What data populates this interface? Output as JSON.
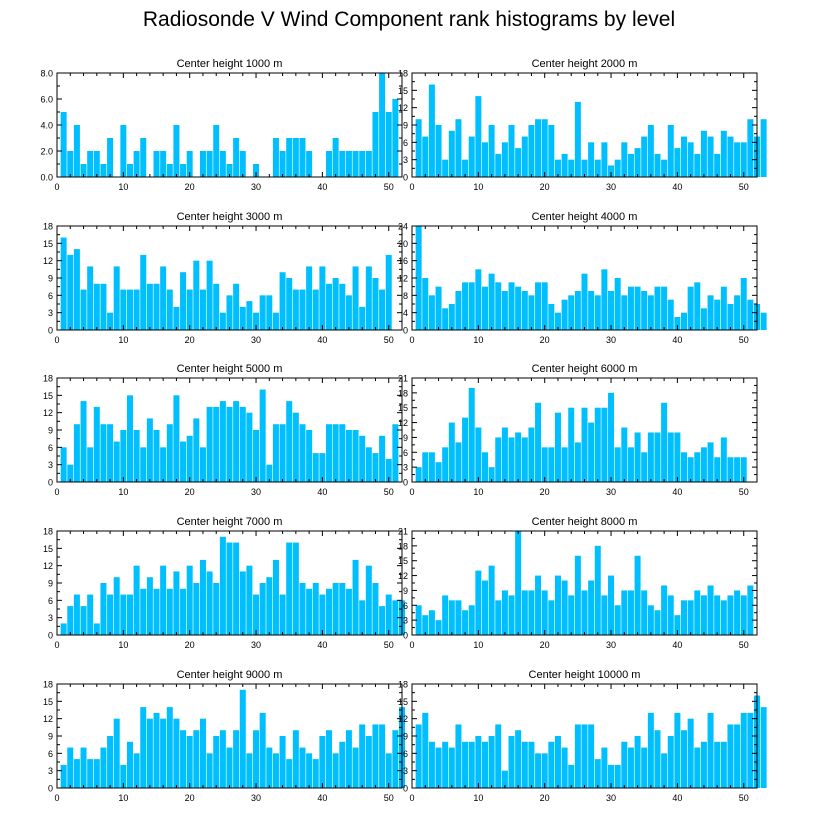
{
  "title": "Radiosonde V Wind Component rank histograms by level",
  "bar_color": "#00BFFF",
  "chart_data": [
    {
      "type": "bar",
      "title": "Center height 1000 m",
      "xlim": [
        0,
        52
      ],
      "ylim": [
        0,
        8
      ],
      "yticks": [
        0,
        2,
        4,
        6,
        8
      ],
      "ytick_labels": [
        "0.0",
        "2.0",
        "4.0",
        "6.0",
        "8.0"
      ],
      "xticks": [
        0,
        10,
        20,
        30,
        40,
        50
      ],
      "values": [
        5,
        2,
        4,
        1,
        2,
        2,
        1,
        3,
        0,
        4,
        1,
        2,
        3,
        0,
        2,
        2,
        1,
        4,
        1,
        2,
        0,
        2,
        2,
        4,
        2,
        1,
        3,
        2,
        0,
        1,
        0,
        0,
        3,
        2,
        3,
        3,
        3,
        2,
        0,
        0,
        2,
        3,
        2,
        2,
        2,
        2,
        2,
        5,
        8,
        5,
        6
      ]
    },
    {
      "type": "bar",
      "title": "Center height 2000 m",
      "xlim": [
        0,
        52
      ],
      "ylim": [
        0,
        18
      ],
      "yticks": [
        0,
        3,
        6,
        9,
        12,
        15,
        18
      ],
      "ytick_labels": [
        "0",
        "3",
        "6",
        "9",
        "12",
        "15",
        "18"
      ],
      "xticks": [
        0,
        10,
        20,
        30,
        40,
        50
      ],
      "values": [
        10,
        7,
        16,
        9,
        3,
        8,
        10,
        3,
        7,
        14,
        6,
        9,
        4,
        6,
        9,
        5,
        7,
        9,
        10,
        10,
        9,
        3,
        4,
        3,
        13,
        3,
        6,
        3,
        6,
        2,
        3,
        6,
        4,
        5,
        7,
        9,
        4,
        3,
        9,
        5,
        7,
        6,
        4,
        8,
        7,
        4,
        8,
        7,
        6,
        6,
        10,
        7,
        10
      ]
    },
    {
      "type": "bar",
      "title": "Center height 3000 m",
      "xlim": [
        0,
        52
      ],
      "ylim": [
        0,
        18
      ],
      "yticks": [
        0,
        3,
        6,
        9,
        12,
        15,
        18
      ],
      "ytick_labels": [
        "0",
        "3",
        "6",
        "9",
        "12",
        "15",
        "18"
      ],
      "xticks": [
        0,
        10,
        20,
        30,
        40,
        50
      ],
      "values": [
        16,
        13,
        14,
        7,
        11,
        8,
        8,
        3,
        11,
        7,
        7,
        7,
        13,
        8,
        8,
        11,
        7,
        4,
        10,
        7,
        12,
        7,
        12,
        8,
        3,
        6,
        8,
        4,
        5,
        3,
        6,
        6,
        3,
        10,
        9,
        7,
        7,
        11,
        7,
        11,
        8,
        9,
        8,
        6,
        11,
        4,
        11,
        9,
        7,
        13
      ]
    },
    {
      "type": "bar",
      "title": "Center height 4000 m",
      "xlim": [
        0,
        52
      ],
      "ylim": [
        0,
        24
      ],
      "yticks": [
        0,
        4,
        8,
        12,
        16,
        20,
        24
      ],
      "ytick_labels": [
        "0",
        "4",
        "8",
        "12",
        "16",
        "20",
        "24"
      ],
      "xticks": [
        0,
        10,
        20,
        30,
        40,
        50
      ],
      "values": [
        24,
        12,
        8,
        10,
        5,
        6,
        9,
        11,
        11,
        14,
        10,
        13,
        11,
        9,
        11,
        10,
        9,
        8,
        11,
        11,
        6,
        4,
        7,
        8,
        9,
        13,
        9,
        8,
        14,
        9,
        12,
        8,
        10,
        10,
        9,
        8,
        10,
        10,
        7,
        3,
        4,
        10,
        11,
        5,
        8,
        7,
        10,
        6,
        8,
        12,
        7,
        6,
        4
      ]
    },
    {
      "type": "bar",
      "title": "Center height 5000 m",
      "xlim": [
        0,
        52
      ],
      "ylim": [
        0,
        18
      ],
      "yticks": [
        0,
        3,
        6,
        9,
        12,
        15,
        18
      ],
      "ytick_labels": [
        "0",
        "3",
        "6",
        "9",
        "12",
        "15",
        "18"
      ],
      "xticks": [
        0,
        10,
        20,
        30,
        40,
        50
      ],
      "values": [
        6,
        3,
        10,
        14,
        6,
        13,
        10,
        10,
        7,
        9,
        15,
        9,
        6,
        11,
        9,
        6,
        10,
        15,
        7,
        8,
        11,
        6,
        13,
        13,
        14,
        13,
        14,
        13,
        12,
        9,
        16,
        3,
        10,
        10,
        14,
        12,
        10,
        9,
        5,
        5,
        10,
        10,
        10,
        9,
        9,
        8,
        6,
        5,
        8,
        4,
        10
      ]
    },
    {
      "type": "bar",
      "title": "Center height 6000 m",
      "xlim": [
        0,
        52
      ],
      "ylim": [
        0,
        21
      ],
      "yticks": [
        0,
        3,
        6,
        9,
        12,
        15,
        18,
        21
      ],
      "ytick_labels": [
        "0",
        "3",
        "6",
        "9",
        "12",
        "15",
        "18",
        "21"
      ],
      "xticks": [
        0,
        10,
        20,
        30,
        40,
        50
      ],
      "values": [
        3,
        6,
        6,
        4,
        7,
        12,
        8,
        13,
        19,
        11,
        6,
        3,
        9,
        11,
        9,
        10,
        9,
        11,
        16,
        7,
        7,
        14,
        7,
        15,
        8,
        15,
        12,
        15,
        15,
        18,
        7,
        11,
        7,
        10,
        6,
        10,
        10,
        16,
        10,
        10,
        6,
        5,
        6,
        7,
        8,
        5,
        9,
        5,
        5,
        5
      ]
    },
    {
      "type": "bar",
      "title": "Center height 7000 m",
      "xlim": [
        0,
        52
      ],
      "ylim": [
        0,
        18
      ],
      "yticks": [
        0,
        3,
        6,
        9,
        12,
        15,
        18
      ],
      "ytick_labels": [
        "0",
        "3",
        "6",
        "9",
        "12",
        "15",
        "18"
      ],
      "xticks": [
        0,
        10,
        20,
        30,
        40,
        50
      ],
      "values": [
        2,
        5,
        7,
        5,
        7,
        2,
        9,
        7,
        10,
        7,
        7,
        12,
        8,
        10,
        8,
        12,
        8,
        11,
        8,
        12,
        9,
        13,
        11,
        9,
        17,
        16,
        16,
        11,
        12,
        7,
        9,
        10,
        13,
        7,
        16,
        16,
        9,
        8,
        9,
        7,
        8,
        9,
        9,
        8,
        13,
        6,
        12,
        9,
        5,
        7,
        6,
        6
      ]
    },
    {
      "type": "bar",
      "title": "Center height 8000 m",
      "xlim": [
        0,
        52
      ],
      "ylim": [
        0,
        21
      ],
      "yticks": [
        0,
        3,
        6,
        9,
        12,
        15,
        18,
        21
      ],
      "ytick_labels": [
        "0",
        "3",
        "6",
        "9",
        "12",
        "15",
        "18",
        "21"
      ],
      "xticks": [
        0,
        10,
        20,
        30,
        40,
        50
      ],
      "values": [
        6,
        4,
        5,
        3,
        8,
        7,
        7,
        5,
        6,
        13,
        11,
        14,
        7,
        9,
        8,
        21,
        9,
        9,
        12,
        9,
        7,
        12,
        11,
        8,
        16,
        9,
        11,
        18,
        8,
        12,
        6,
        9,
        9,
        16,
        9,
        6,
        5,
        10,
        8,
        4,
        7,
        7,
        9,
        8,
        10,
        8,
        7,
        8,
        9,
        8,
        10
      ]
    },
    {
      "type": "bar",
      "title": "Center height 9000 m",
      "xlim": [
        0,
        52
      ],
      "ylim": [
        0,
        18
      ],
      "yticks": [
        0,
        3,
        6,
        9,
        12,
        15,
        18
      ],
      "ytick_labels": [
        "0",
        "3",
        "6",
        "9",
        "12",
        "15",
        "18"
      ],
      "xticks": [
        0,
        10,
        20,
        30,
        40,
        50
      ],
      "values": [
        4,
        7,
        5,
        7,
        5,
        5,
        7,
        9,
        12,
        4,
        8,
        6,
        14,
        12,
        13,
        12,
        14,
        12,
        10,
        9,
        10,
        12,
        6,
        9,
        10,
        7,
        10,
        17,
        6,
        10,
        13,
        7,
        6,
        9,
        5,
        10,
        7,
        6,
        5,
        9,
        10,
        6,
        8,
        10,
        7,
        11,
        9,
        11,
        11,
        6,
        10,
        14
      ]
    },
    {
      "type": "bar",
      "title": "Center height 10000 m",
      "xlim": [
        0,
        52
      ],
      "ylim": [
        0,
        18
      ],
      "yticks": [
        0,
        3,
        6,
        9,
        12,
        15,
        18
      ],
      "ytick_labels": [
        "0",
        "3",
        "6",
        "9",
        "12",
        "15",
        "18"
      ],
      "xticks": [
        0,
        10,
        20,
        30,
        40,
        50
      ],
      "values": [
        11,
        13,
        8,
        7,
        8,
        7,
        11,
        8,
        8,
        9,
        8,
        9,
        11,
        3,
        9,
        10,
        8,
        8,
        6,
        6,
        8,
        9,
        7,
        4,
        11,
        11,
        11,
        5,
        7,
        4,
        4,
        8,
        7,
        9,
        7,
        13,
        10,
        6,
        9,
        13,
        10,
        12,
        7,
        8,
        13,
        8,
        8,
        11,
        11,
        13,
        13,
        16,
        14
      ]
    }
  ]
}
